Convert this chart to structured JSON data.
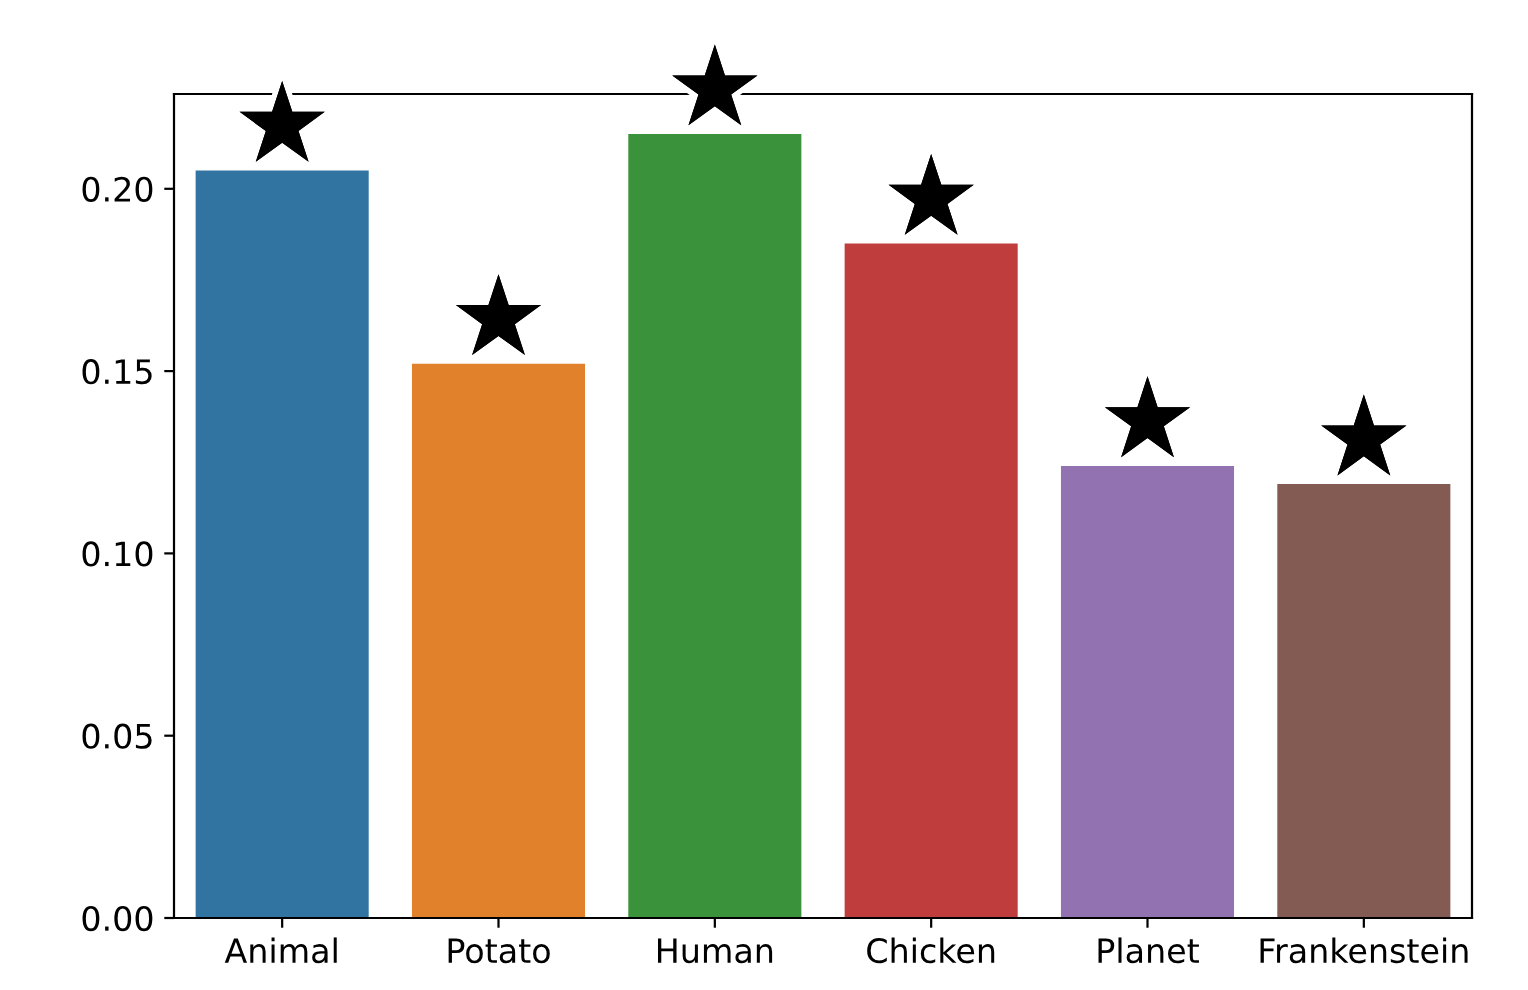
{
  "chart_data": {
    "type": "bar",
    "categories": [
      "Animal",
      "Potato",
      "Human",
      "Chicken",
      "Planet",
      "Frankenstein"
    ],
    "values": [
      0.205,
      0.152,
      0.215,
      0.185,
      0.124,
      0.119
    ],
    "colors": [
      "#3274a1",
      "#e1812c",
      "#3a923a",
      "#c03d3e",
      "#9372b2",
      "#845b53"
    ],
    "ylim": [
      0,
      0.226
    ],
    "yticks": [
      {
        "value": 0,
        "label": "0.00"
      },
      {
        "value": 0.05,
        "label": "0.05"
      },
      {
        "value": 0.1,
        "label": "0.10"
      },
      {
        "value": 0.15,
        "label": "0.15"
      },
      {
        "value": 0.2,
        "label": "0.20"
      }
    ],
    "grid": false,
    "annotations": [
      {
        "text": "★",
        "x": "Animal",
        "y": 0.205
      },
      {
        "text": "★",
        "x": "Potato",
        "y": 0.152
      },
      {
        "text": "★",
        "x": "Human",
        "y": 0.215
      },
      {
        "text": "★",
        "x": "Chicken",
        "y": 0.185
      },
      {
        "text": "★",
        "x": "Planet",
        "y": 0.124
      },
      {
        "text": "★",
        "x": "Frankenstein",
        "y": 0.119
      }
    ]
  }
}
